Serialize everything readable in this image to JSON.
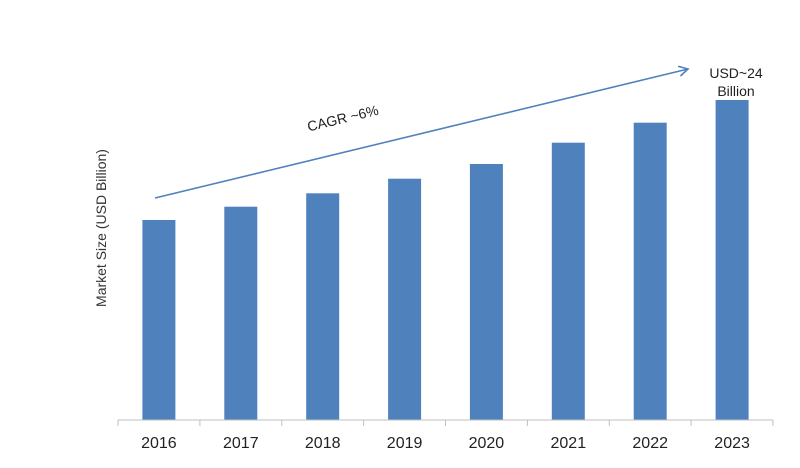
{
  "chart_data": {
    "type": "bar",
    "title": "",
    "xlabel": "",
    "ylabel": "Market Size (USD Billion)",
    "categories": [
      "2016",
      "2017",
      "2018",
      "2019",
      "2020",
      "2021",
      "2022",
      "2023"
    ],
    "values": [
      15.0,
      16.0,
      17.0,
      18.1,
      19.2,
      20.8,
      22.3,
      24.0
    ],
    "ylim": [
      0,
      30
    ],
    "grid": false,
    "legend": "none",
    "bar_color": "#4F81BD",
    "annotations": {
      "cagr_label": "CAGR ~6%",
      "end_value_line1": "USD~24",
      "end_value_line2": "Billion",
      "arrow_color": "#4F81BD"
    }
  }
}
